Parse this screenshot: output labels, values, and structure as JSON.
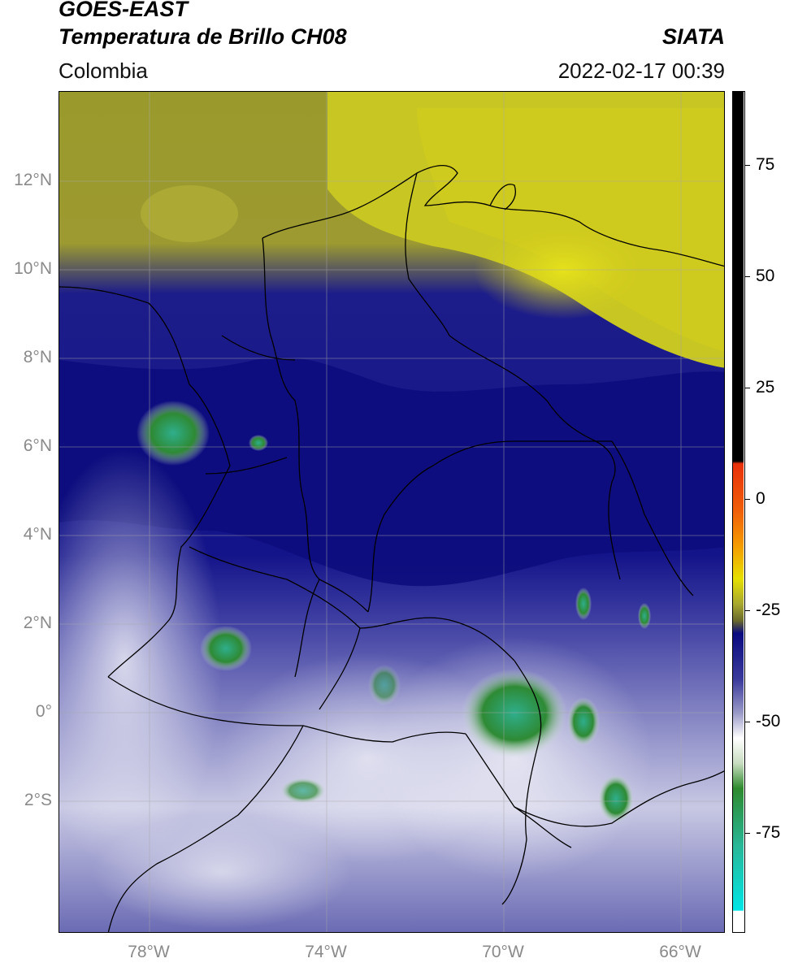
{
  "header": {
    "title_line1": "GOES-EAST",
    "title_line2": "Temperatura de Brillo CH08",
    "brand": "SIATA",
    "region": "Colombia",
    "timestamp": "2022-02-17 00:39"
  },
  "map": {
    "lat_ticks": [
      "12°N",
      "10°N",
      "8°N",
      "6°N",
      "4°N",
      "2°N",
      "0°",
      "2°S"
    ],
    "lon_ticks": [
      "78°W",
      "74°W",
      "70°W",
      "66°W"
    ]
  },
  "colorbar": {
    "ticks": [
      "75",
      "50",
      "25",
      "0",
      "-25",
      "-50",
      "-75"
    ],
    "colors": {
      "black": "#000000",
      "red": "#e8300a",
      "orange": "#f59a00",
      "yellow": "#e6e000",
      "olive": "#6a6a2a",
      "navy": "#0a0a80",
      "lavender": "#9a9ac8",
      "white": "#ffffff",
      "green": "#2e8a2e",
      "teal": "#28b89a",
      "cyan": "#00e6e6"
    }
  }
}
